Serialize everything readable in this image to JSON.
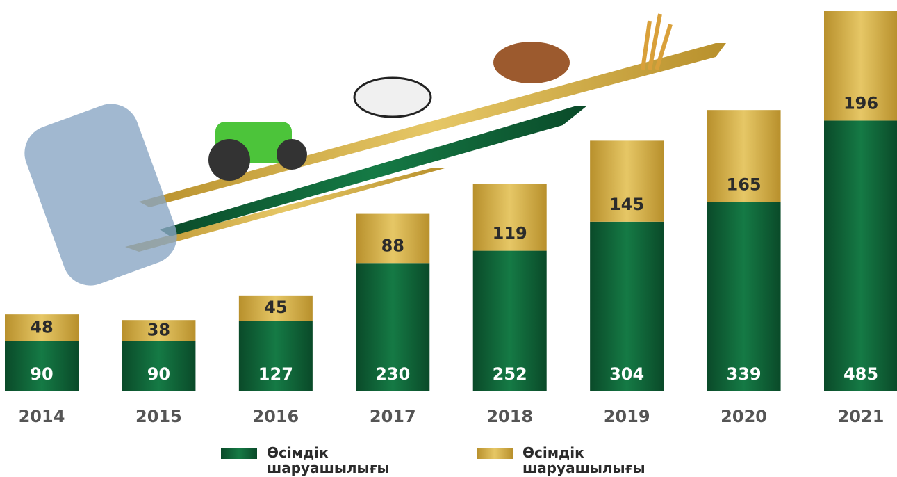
{
  "chart_data": {
    "type": "stacked-bar",
    "categories": [
      "2014",
      "2015",
      "2016",
      "2017",
      "2018",
      "2019",
      "2020",
      "2021"
    ],
    "series": [
      {
        "name": "Өсімдік шаруашылығы",
        "color": "#0d5b33",
        "values": [
          90,
          90,
          127,
          230,
          252,
          304,
          339,
          485
        ]
      },
      {
        "name": "Өсімдік шаруашылығы",
        "color": "#c9a33d",
        "values": [
          48,
          38,
          45,
          88,
          119,
          145,
          165,
          196
        ]
      }
    ]
  }
}
